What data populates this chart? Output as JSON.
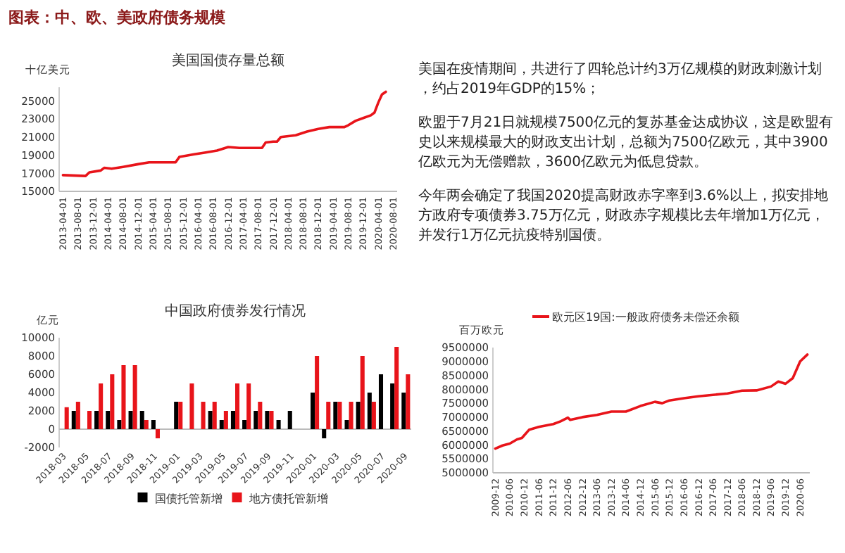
{
  "chart_data": [
    {
      "type": "line",
      "title": "美国国债存量总额",
      "ylabel": "十亿美元",
      "x": [
        "2013-04",
        "2013-10",
        "2013-11",
        "2014-02",
        "2014-03",
        "2014-05",
        "2014-08",
        "2014-12",
        "2015-03",
        "2015-10",
        "2015-11",
        "2016-03",
        "2016-06",
        "2016-09",
        "2016-12",
        "2017-03",
        "2017-09",
        "2017-10",
        "2017-12",
        "2018-01",
        "2018-02",
        "2018-06",
        "2018-09",
        "2018-12",
        "2019-03",
        "2019-07",
        "2019-08",
        "2019-10",
        "2019-12",
        "2020-02",
        "2020-03",
        "2020-04",
        "2020-05",
        "2020-06"
      ],
      "series": [
        {
          "color": "#e8141a",
          "values": [
            16800,
            16700,
            17100,
            17300,
            17600,
            17500,
            17700,
            18000,
            18200,
            18200,
            18800,
            19100,
            19300,
            19500,
            19900,
            19800,
            19800,
            20400,
            20500,
            20500,
            21000,
            21200,
            21600,
            21900,
            22100,
            22100,
            22300,
            22800,
            23100,
            23400,
            23700,
            24800,
            25700,
            26000
          ]
        }
      ],
      "xlim": [
        "2013-03",
        "2020-09"
      ],
      "xticks": [
        "2013-04-01",
        "2013-08-01",
        "2013-12-01",
        "2014-04-01",
        "2014-08-01",
        "2014-12-01",
        "2015-04-01",
        "2015-08-01",
        "2015-12-01",
        "2016-04-01",
        "2016-08-01",
        "2016-12-01",
        "2017-04-01",
        "2017-08-01",
        "2017-12-01",
        "2018-04-01",
        "2018-08-01",
        "2018-12-01",
        "2019-04-01",
        "2019-08-01",
        "2019-12-01",
        "2020-04-01",
        "2020-08-01"
      ],
      "ylim": [
        15000,
        26500
      ],
      "yticks": [
        15000,
        17000,
        19000,
        21000,
        23000,
        25000
      ],
      "grid": false,
      "legend": false
    },
    {
      "type": "other",
      "title": "图表：中、欧、美政府债务规模",
      "annotations": [
        "美国在疫情期间，共进行了四轮总计约3万亿规模的财政刺激计划，约占2019年GDP的15%；",
        "欧盟于7月21日就规模7500亿元的复苏基金达成协议，这是欧盟有史以来规模最大的财政支出计划，总额为7500亿欧元，其中3900亿欧元为无偿赠款，3600亿欧元为低息贷款。",
        "今年两会确定了我国2020提高财政赤字率到3.6%以上，拟安排地方政府专项债券3.75万亿元，财政赤字规模比去年增加1万亿元，并发行1万亿元抗疫特别国债。"
      ]
    },
    {
      "type": "bar",
      "title": "中国政府债券发行情况",
      "ylabel": "亿元",
      "categories": [
        "2018-03",
        null,
        "2018-05",
        null,
        "2018-07",
        null,
        "2018-09",
        null,
        "2018-11",
        null,
        "2019-01",
        null,
        "2019-03",
        null,
        "2019-05",
        null,
        "2019-07",
        null,
        "2019-09",
        null,
        "2019-11",
        null,
        "2020-01",
        null,
        "2020-03",
        null,
        "2020-05",
        null,
        "2020-07",
        null,
        "2020-09"
      ],
      "series": [
        {
          "name": "国债托管新增",
          "color": "#000000",
          "values": [
            null,
            2000,
            null,
            2000,
            2000,
            1000,
            2000,
            2000,
            1000,
            null,
            3000,
            null,
            null,
            2000,
            1000,
            2000,
            1000,
            2000,
            2000,
            1000,
            2000,
            null,
            4000,
            -1000,
            3000,
            1000,
            3000,
            4000,
            6000,
            5000,
            4000
          ]
        },
        {
          "name": "地方债托管新增",
          "color": "#e8141a",
          "values": [
            2400,
            3000,
            2000,
            5000,
            6000,
            7000,
            7000,
            1000,
            -1000,
            null,
            3000,
            5000,
            3000,
            3000,
            2000,
            5000,
            5000,
            3000,
            2000,
            null,
            null,
            null,
            8000,
            3000,
            3000,
            3000,
            8000,
            3000,
            null,
            9000,
            6000
          ]
        }
      ],
      "ylim": [
        -2000,
        10000
      ],
      "yticks": [
        -2000,
        0,
        2000,
        4000,
        6000,
        8000,
        10000
      ],
      "grid": false,
      "legend": "bottom"
    },
    {
      "type": "line",
      "ylabel": "百万欧元",
      "x": [
        "2009-12",
        "2010-03",
        "2010-06",
        "2010-09",
        "2010-11",
        "2011-02",
        "2011-06",
        "2011-12",
        "2012-03",
        "2012-06",
        "2012-07",
        "2012-12",
        "2013-06",
        "2013-12",
        "2014-06",
        "2014-12",
        "2015-06",
        "2015-09",
        "2015-12",
        "2016-06",
        "2016-12",
        "2017-06",
        "2017-12",
        "2018-06",
        "2018-12",
        "2019-06",
        "2019-09",
        "2019-12",
        "2020-03",
        "2020-06",
        "2020-09"
      ],
      "series": [
        {
          "name": "欧元区19国:一般政府债务未偿还余额",
          "color": "#e8141a",
          "values": [
            5870000,
            5980000,
            6050000,
            6200000,
            6250000,
            6550000,
            6650000,
            6750000,
            6850000,
            6980000,
            6900000,
            7000000,
            7080000,
            7200000,
            7200000,
            7400000,
            7550000,
            7500000,
            7600000,
            7680000,
            7750000,
            7800000,
            7850000,
            7950000,
            7960000,
            8100000,
            8280000,
            8200000,
            8400000,
            9000000,
            9250000
          ]
        }
      ],
      "xlim": [
        "2009-11",
        "2020-10"
      ],
      "xticks": [
        "2009-12",
        "2010-06",
        "2010-12",
        "2011-06",
        "2011-12",
        "2012-06",
        "2012-12",
        "2013-06",
        "2013-12",
        "2014-06",
        "2014-12",
        "2015-06",
        "2015-12",
        "2016-06",
        "2016-12",
        "2017-06",
        "2017-12",
        "2018-06",
        "2018-12",
        "2019-06",
        "2019-12",
        "2020-06"
      ],
      "ylim": [
        5000000,
        9500000
      ],
      "yticks": [
        5000000,
        5500000,
        6000000,
        6500000,
        7000000,
        7500000,
        8000000,
        8500000,
        9000000,
        9500000
      ],
      "grid": false,
      "legend": "top"
    }
  ]
}
